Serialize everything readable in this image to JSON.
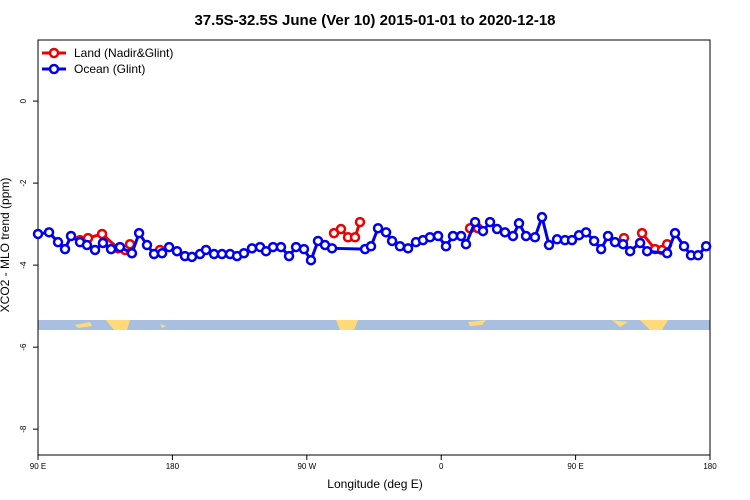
{
  "chart_data": {
    "type": "line",
    "title": "37.5S-32.5S June (Ver 10)   2015-01-01 to 2020-12-18",
    "x_label": "Longitude (deg E)",
    "y_label": "XCO2 - MLO trend (ppm)",
    "xlim": [
      90,
      540
    ],
    "ylim": [
      -8.63,
      1.49
    ],
    "xticks": [
      {
        "value": 90,
        "label": "90 E"
      },
      180,
      {
        "value": 270,
        "label": "90 W"
      },
      {
        "value": 360,
        "label": "0"
      },
      {
        "value": 450,
        "label": "90 E"
      },
      {
        "value": 540,
        "label": "180"
      }
    ],
    "yticks": [
      0,
      -2,
      -4,
      -6,
      -8
    ],
    "legend": "top-left",
    "series": [
      {
        "name": "Land (Nadir&Glint)",
        "color": "#ee0000",
        "x": [
          118.1,
          123.5,
          132.9,
          143.6,
          148.3,
          151.6,
          null,
          171.7,
          null,
          288.2,
          292.9,
          297.6,
          302.3,
          305.6,
          null,
          379.3,
          384.6,
          null,
          482.4,
          null,
          494.5,
          503.2,
          507.9,
          511.3
        ],
        "values": [
          -3.39,
          -3.34,
          -3.24,
          -3.59,
          -3.63,
          -3.49,
          null,
          -3.63,
          null,
          -3.22,
          -3.12,
          -3.32,
          -3.32,
          -2.95,
          null,
          -3.1,
          -3.1,
          null,
          -3.34,
          null,
          -3.22,
          -3.61,
          -3.63,
          -3.49
        ]
      },
      {
        "name": "Ocean (Glint)",
        "color": "#0000ee",
        "x": [
          90,
          97.4,
          103.4,
          108.1,
          112.1,
          118.1,
          122.8,
          128.2,
          133.5,
          138.9,
          144.9,
          152.9,
          157.7,
          163.0,
          167.7,
          173.1,
          177.8,
          183.1,
          188.4,
          193.1,
          198.5,
          202.5,
          207.9,
          213.2,
          218.6,
          223.3,
          227.9,
          233.3,
          238.7,
          242.7,
          247.4,
          252.7,
          258.1,
          262.8,
          268.1,
          272.8,
          277.5,
          282.2,
          286.9,
          309.0,
          313.0,
          317.7,
          323.1,
          327.1,
          332.4,
          337.8,
          343.1,
          347.8,
          352.5,
          357.9,
          363.2,
          367.9,
          373.3,
          376.6,
          382.7,
          388.0,
          392.7,
          397.4,
          402.7,
          408.1,
          412.1,
          416.8,
          422.8,
          427.5,
          432.2,
          437.6,
          442.9,
          447.6,
          452.3,
          457.0,
          462.4,
          467.1,
          471.7,
          476.4,
          481.8,
          486.5,
          493.2,
          497.9,
          511.3,
          516.6,
          522.6,
          527.3,
          532.0,
          537.4
        ],
        "values": [
          -3.24,
          -3.2,
          -3.44,
          -3.61,
          -3.29,
          -3.44,
          -3.51,
          -3.63,
          -3.46,
          -3.61,
          -3.56,
          -3.71,
          -3.22,
          -3.51,
          -3.73,
          -3.71,
          -3.56,
          -3.66,
          -3.78,
          -3.8,
          -3.73,
          -3.63,
          -3.73,
          -3.73,
          -3.73,
          -3.78,
          -3.71,
          -3.59,
          -3.56,
          -3.66,
          -3.56,
          -3.56,
          -3.78,
          -3.56,
          -3.61,
          -3.88,
          -3.41,
          -3.51,
          -3.59,
          -3.61,
          -3.54,
          -3.1,
          -3.2,
          -3.41,
          -3.54,
          -3.59,
          -3.44,
          -3.39,
          -3.32,
          -3.29,
          -3.54,
          -3.29,
          -3.29,
          -3.49,
          -2.95,
          -3.17,
          -2.95,
          -3.12,
          -3.2,
          -3.29,
          -2.98,
          -3.29,
          -3.32,
          -2.83,
          -3.51,
          -3.37,
          -3.39,
          -3.39,
          -3.27,
          -3.2,
          -3.41,
          -3.61,
          -3.29,
          -3.44,
          -3.49,
          -3.66,
          -3.46,
          -3.66,
          -3.71,
          -3.22,
          -3.54,
          -3.76,
          -3.76,
          -3.54
        ]
      }
    ]
  }
}
